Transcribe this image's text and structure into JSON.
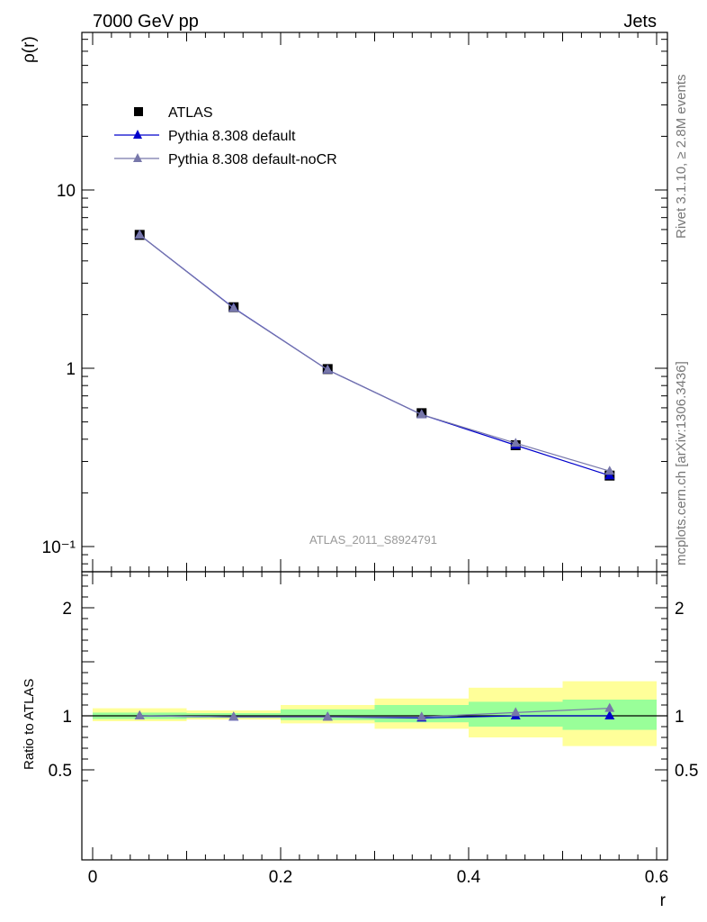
{
  "header": {
    "left": "7000 GeV pp",
    "right": "Jets"
  },
  "side_labels": {
    "rivet": "Rivet 3.1.10, ≥ 2.8M events",
    "mcplots": "mcplots.cern.ch [arXiv:1306.3436]"
  },
  "analysis_label": "ATLAS_2011_S8924791",
  "colors": {
    "atlas": "#000000",
    "default": "#0000cc",
    "nocr": "#7777aa",
    "band_inner": "#99ff99",
    "band_outer": "#ffff99"
  },
  "legend": [
    {
      "label": "ATLAS",
      "marker": "square"
    },
    {
      "label": "Pythia 8.308 default",
      "marker": "triangle"
    },
    {
      "label": "Pythia 8.308 default-noCR",
      "marker": "triangle"
    }
  ],
  "chart_data": [
    {
      "type": "line",
      "panel": "main",
      "ylabel": "ρ(r)",
      "yscale": "log",
      "xlim": [
        0,
        0.6
      ],
      "ylim": [
        0.08,
        50
      ],
      "x_ticks": [
        0,
        0.2,
        0.4,
        0.6
      ],
      "y_tick_labels": [
        "10⁻¹",
        "1",
        "10"
      ],
      "x": [
        0.05,
        0.15,
        0.25,
        0.35,
        0.45,
        0.55
      ],
      "series": [
        {
          "name": "ATLAS",
          "values": [
            5.6,
            2.2,
            0.99,
            0.56,
            0.37,
            0.25
          ]
        },
        {
          "name": "Pythia 8.308 default",
          "values": [
            5.6,
            2.18,
            0.98,
            0.55,
            0.37,
            0.25
          ]
        },
        {
          "name": "Pythia 8.308 default-noCR",
          "values": [
            5.6,
            2.17,
            0.98,
            0.55,
            0.38,
            0.265
          ]
        }
      ]
    },
    {
      "type": "line",
      "panel": "ratio",
      "ylabel": "Ratio to ATLAS",
      "xlabel": "r",
      "xlim": [
        0,
        0.6
      ],
      "ylim": [
        0.4,
        2.3
      ],
      "y_ticks": [
        0.5,
        1,
        2
      ],
      "x_tick_labels": [
        "0",
        "0.2",
        "0.4",
        "0.6"
      ],
      "x": [
        0.05,
        0.15,
        0.25,
        0.35,
        0.45,
        0.55
      ],
      "bins": [
        [
          0,
          0.1
        ],
        [
          0.1,
          0.2
        ],
        [
          0.2,
          0.3
        ],
        [
          0.3,
          0.4
        ],
        [
          0.4,
          0.5
        ],
        [
          0.5,
          0.6
        ]
      ],
      "band_inner": [
        [
          0.97,
          1.03
        ],
        [
          0.98,
          1.025
        ],
        [
          0.96,
          1.06
        ],
        [
          0.94,
          1.1
        ],
        [
          0.9,
          1.13
        ],
        [
          0.87,
          1.15
        ]
      ],
      "band_outer": [
        [
          0.95,
          1.07
        ],
        [
          0.965,
          1.05
        ],
        [
          0.93,
          1.1
        ],
        [
          0.88,
          1.16
        ],
        [
          0.8,
          1.26
        ],
        [
          0.72,
          1.32
        ]
      ],
      "series": [
        {
          "name": "Pythia 8.308 default",
          "values": [
            1.0,
            0.99,
            0.99,
            0.98,
            1.0,
            1.0
          ]
        },
        {
          "name": "Pythia 8.308 default-noCR",
          "values": [
            1.0,
            0.99,
            0.99,
            0.99,
            1.03,
            1.07
          ]
        }
      ]
    }
  ]
}
